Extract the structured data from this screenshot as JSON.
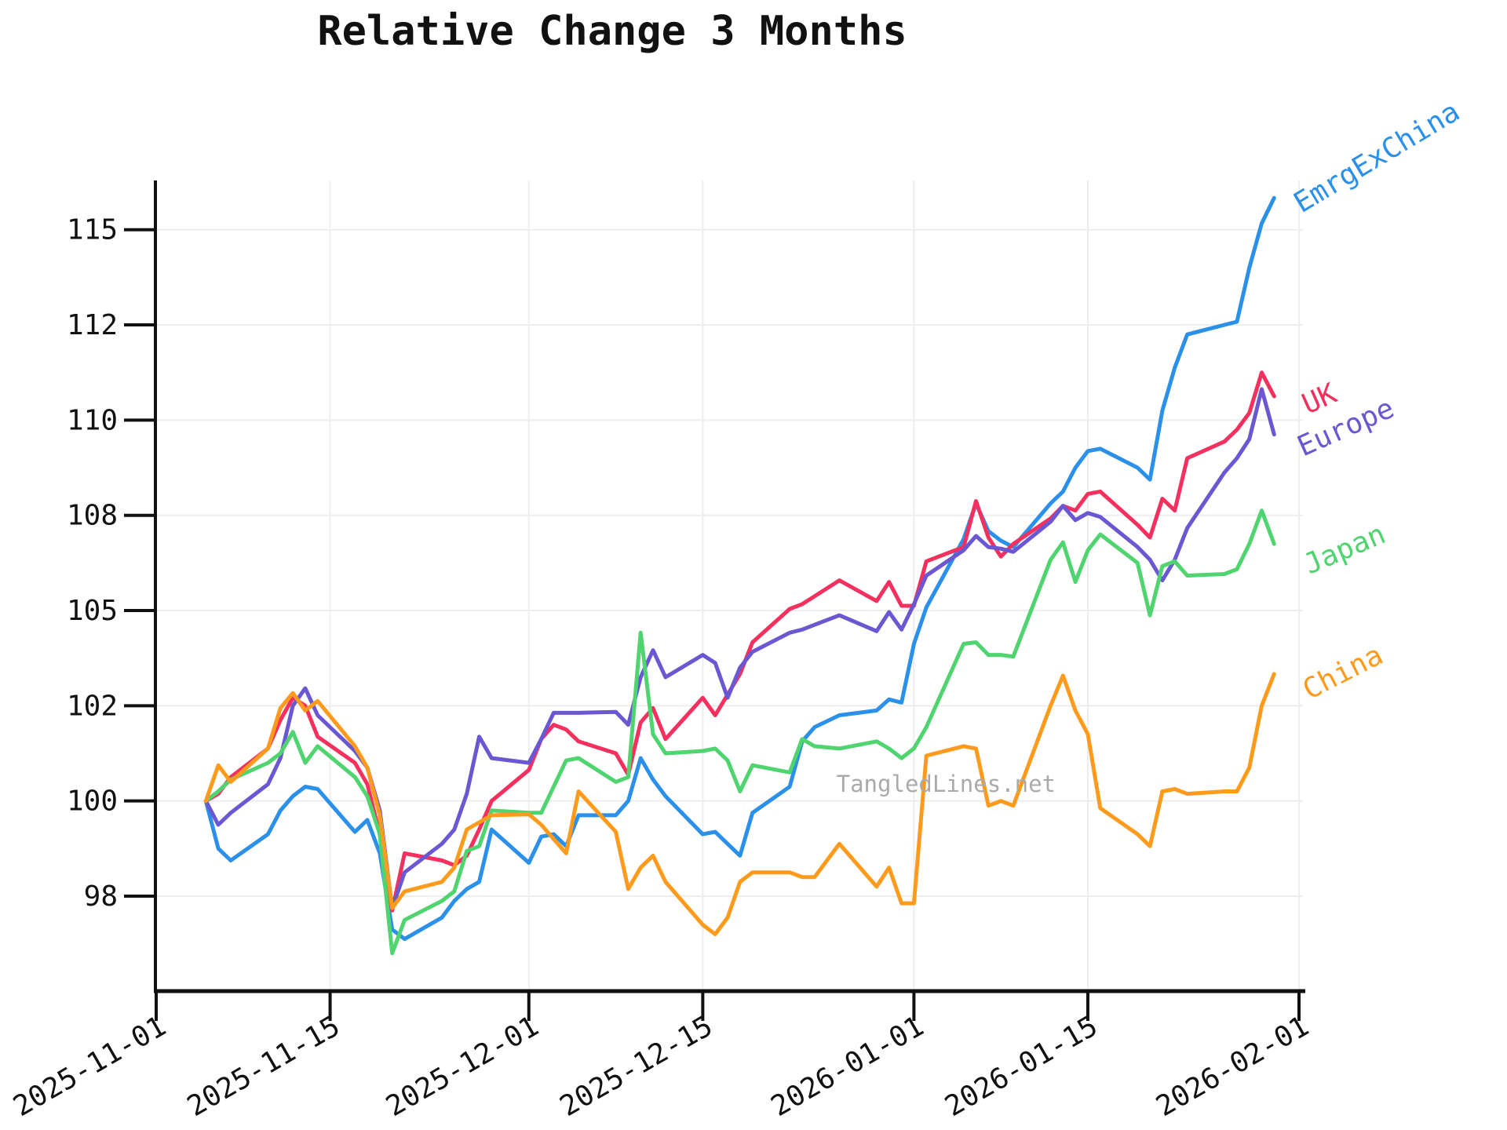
{
  "title": "Relative Change 3 Months",
  "watermark": "TangledLines.net",
  "colors": {
    "axis": "#111111",
    "grid": "#eeeeee",
    "tick_label": "#111111",
    "watermark": "#aaaaaa"
  },
  "chart_data": {
    "type": "line",
    "title": "Relative Change 3 Months",
    "xlabel": "",
    "ylabel": "",
    "grid": true,
    "legend_position": "right-edge-line-labels",
    "x_range": [
      "2025-11-01",
      "2026-02-01"
    ],
    "x_tick_labels": [
      "2025-11-01",
      "2025-11-15",
      "2025-12-01",
      "2025-12-15",
      "2026-01-01",
      "2026-01-15",
      "2026-02-01"
    ],
    "y_tick_labels": [
      "115",
      "112",
      "110",
      "108",
      "105",
      "102",
      "100",
      "98"
    ],
    "y_ticks_equally_spaced": true,
    "x": [
      "2025-11-05",
      "2025-11-06",
      "2025-11-07",
      "2025-11-10",
      "2025-11-11",
      "2025-11-12",
      "2025-11-13",
      "2025-11-14",
      "2025-11-17",
      "2025-11-18",
      "2025-11-19",
      "2025-11-20",
      "2025-11-21",
      "2025-11-24",
      "2025-11-25",
      "2025-11-26",
      "2025-11-27",
      "2025-11-28",
      "2025-12-01",
      "2025-12-02",
      "2025-12-03",
      "2025-12-04",
      "2025-12-05",
      "2025-12-08",
      "2025-12-09",
      "2025-12-10",
      "2025-12-11",
      "2025-12-12",
      "2025-12-15",
      "2025-12-16",
      "2025-12-17",
      "2025-12-18",
      "2025-12-19",
      "2025-12-22",
      "2025-12-23",
      "2025-12-24",
      "2025-12-26",
      "2025-12-29",
      "2025-12-30",
      "2025-12-31",
      "2026-01-01",
      "2026-01-02",
      "2026-01-05",
      "2026-01-06",
      "2026-01-07",
      "2026-01-08",
      "2026-01-09",
      "2026-01-12",
      "2026-01-13",
      "2026-01-14",
      "2026-01-15",
      "2026-01-16",
      "2026-01-19",
      "2026-01-20",
      "2026-01-21",
      "2026-01-22",
      "2026-01-23",
      "2026-01-26",
      "2026-01-27",
      "2026-01-28",
      "2026-01-29",
      "2026-01-30"
    ],
    "series": [
      {
        "name": "EmrgExChina",
        "color": "#2a90e9",
        "values": [
          100.0,
          99.0,
          98.75,
          99.3,
          99.8,
          100.1,
          100.3,
          100.25,
          99.35,
          99.6,
          98.9,
          97.3,
          97.1,
          97.55,
          97.9,
          98.15,
          98.3,
          99.4,
          98.7,
          99.25,
          99.3,
          99.05,
          99.7,
          99.7,
          100.0,
          100.9,
          100.45,
          100.1,
          99.3,
          99.35,
          99.1,
          98.85,
          99.75,
          100.3,
          101.25,
          101.55,
          101.8,
          101.9,
          102.2,
          102.1,
          103.95,
          105.1,
          107.25,
          108.25,
          107.5,
          107.2,
          107.0,
          108.25,
          108.5,
          109.0,
          109.35,
          109.4,
          109.0,
          108.75,
          110.2,
          111.1,
          111.8,
          112.0,
          112.1,
          113.8,
          115.2,
          116.0
        ]
      },
      {
        "name": "UK",
        "color": "#f4305f",
        "values": [
          100.0,
          100.15,
          100.5,
          101.1,
          101.7,
          102.25,
          102.0,
          101.35,
          100.8,
          100.35,
          99.3,
          97.7,
          98.9,
          98.75,
          98.65,
          98.85,
          99.4,
          100.0,
          100.65,
          101.3,
          101.6,
          101.5,
          101.25,
          101.0,
          100.55,
          101.65,
          101.95,
          101.3,
          102.25,
          101.8,
          102.35,
          103.0,
          104.0,
          105.05,
          105.2,
          105.45,
          105.95,
          105.3,
          105.9,
          105.15,
          105.15,
          106.55,
          107.0,
          108.3,
          107.3,
          106.7,
          107.1,
          107.9,
          108.2,
          108.1,
          108.45,
          108.5,
          107.7,
          107.3,
          108.35,
          108.1,
          109.2,
          109.55,
          109.8,
          110.15,
          111.0,
          110.5
        ]
      },
      {
        "name": "Europe",
        "color": "#6a57d2",
        "values": [
          100.0,
          99.5,
          99.75,
          100.35,
          100.9,
          102.0,
          102.55,
          101.8,
          101.05,
          100.7,
          99.8,
          97.75,
          98.5,
          99.1,
          99.4,
          100.15,
          101.35,
          100.9,
          100.8,
          101.3,
          101.85,
          101.85,
          101.85,
          101.87,
          101.6,
          102.9,
          103.75,
          102.9,
          103.6,
          103.35,
          102.25,
          103.2,
          103.7,
          104.3,
          104.4,
          104.55,
          104.85,
          104.35,
          104.95,
          104.4,
          105.2,
          106.1,
          106.9,
          107.35,
          107.0,
          106.95,
          106.85,
          107.8,
          108.2,
          107.85,
          108.05,
          107.95,
          107.0,
          106.6,
          105.95,
          106.6,
          107.6,
          108.9,
          109.2,
          109.6,
          110.65,
          109.7
        ]
      },
      {
        "name": "Japan",
        "color": "#4fd46f",
        "values": [
          100.0,
          100.2,
          100.45,
          100.8,
          101.0,
          101.45,
          100.8,
          101.15,
          100.5,
          100.1,
          99.3,
          96.8,
          97.5,
          97.9,
          98.1,
          98.95,
          99.05,
          99.8,
          99.75,
          99.75,
          100.3,
          100.85,
          100.9,
          100.4,
          100.5,
          104.3,
          101.4,
          101.0,
          101.05,
          101.1,
          100.85,
          100.2,
          100.75,
          100.6,
          101.3,
          101.15,
          101.1,
          101.25,
          101.1,
          100.9,
          101.1,
          101.55,
          103.95,
          104.0,
          103.6,
          103.6,
          103.55,
          106.6,
          107.15,
          105.9,
          106.9,
          107.4,
          106.5,
          104.85,
          106.4,
          106.55,
          106.1,
          106.15,
          106.3,
          107.1,
          108.1,
          107.1
        ]
      },
      {
        "name": "China",
        "color": "#ff9b1c",
        "values": [
          100.0,
          100.75,
          100.4,
          101.1,
          101.95,
          102.4,
          101.9,
          102.15,
          101.15,
          100.7,
          99.7,
          97.75,
          98.1,
          98.3,
          98.6,
          99.4,
          99.55,
          99.7,
          99.72,
          99.5,
          99.2,
          98.9,
          100.2,
          99.35,
          98.15,
          98.6,
          98.85,
          98.3,
          97.4,
          97.2,
          97.55,
          98.3,
          98.5,
          98.5,
          98.4,
          98.4,
          99.1,
          98.2,
          98.6,
          97.85,
          97.85,
          100.95,
          101.15,
          101.1,
          99.9,
          100.0,
          99.9,
          102.0,
          102.95,
          101.9,
          101.4,
          99.85,
          99.3,
          99.05,
          100.2,
          100.25,
          100.15,
          100.2,
          100.2,
          100.7,
          102.0,
          103.0
        ]
      }
    ]
  }
}
